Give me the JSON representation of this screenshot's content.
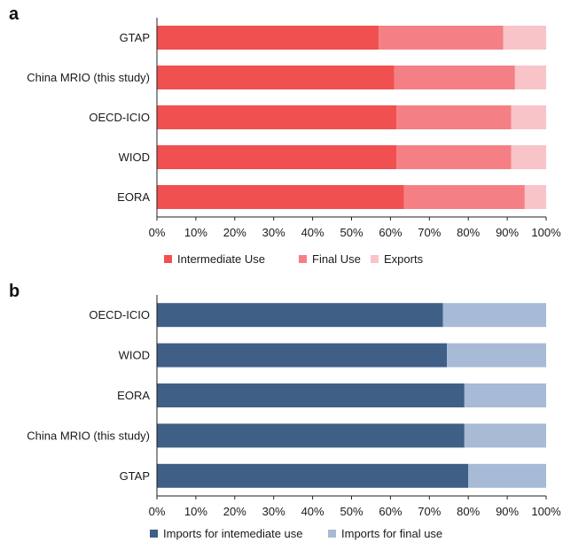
{
  "chart_data": [
    {
      "panel": "a",
      "type": "bar",
      "orientation": "horizontal",
      "stacked": true,
      "categories": [
        "GTAP",
        "China MRIO (this study)",
        "OECD-ICIO",
        "WIOD",
        "EORA"
      ],
      "series": [
        {
          "name": "Intermediate Use",
          "color": "#f05050",
          "values": [
            57,
            61,
            61.5,
            61.5,
            63.5
          ]
        },
        {
          "name": "Final Use",
          "color": "#f48085",
          "values": [
            32,
            31,
            29.5,
            29.5,
            31
          ]
        },
        {
          "name": "Exports",
          "color": "#f8c4c8",
          "values": [
            11,
            8,
            9,
            9,
            5.5
          ]
        }
      ],
      "xlim": [
        0,
        100
      ],
      "xticks": [
        "0%",
        "10%",
        "20%",
        "30%",
        "40%",
        "50%",
        "60%",
        "70%",
        "80%",
        "90%",
        "100%"
      ],
      "legend_position": "bottom"
    },
    {
      "panel": "b",
      "type": "bar",
      "orientation": "horizontal",
      "stacked": true,
      "categories": [
        "OECD-ICIO",
        "WIOD",
        "EORA",
        "China MRIO (this study)",
        "GTAP"
      ],
      "series": [
        {
          "name": "Imports for intemediate use",
          "color": "#3f5f86",
          "values": [
            73.5,
            74.5,
            79,
            79,
            80
          ]
        },
        {
          "name": "Imports for final use",
          "color": "#a7bad6",
          "values": [
            26.5,
            25.5,
            21,
            21,
            20
          ]
        }
      ],
      "xlim": [
        0,
        100
      ],
      "xticks": [
        "0%",
        "10%",
        "20%",
        "30%",
        "40%",
        "50%",
        "60%",
        "70%",
        "80%",
        "90%",
        "100%"
      ],
      "legend_position": "bottom"
    }
  ]
}
